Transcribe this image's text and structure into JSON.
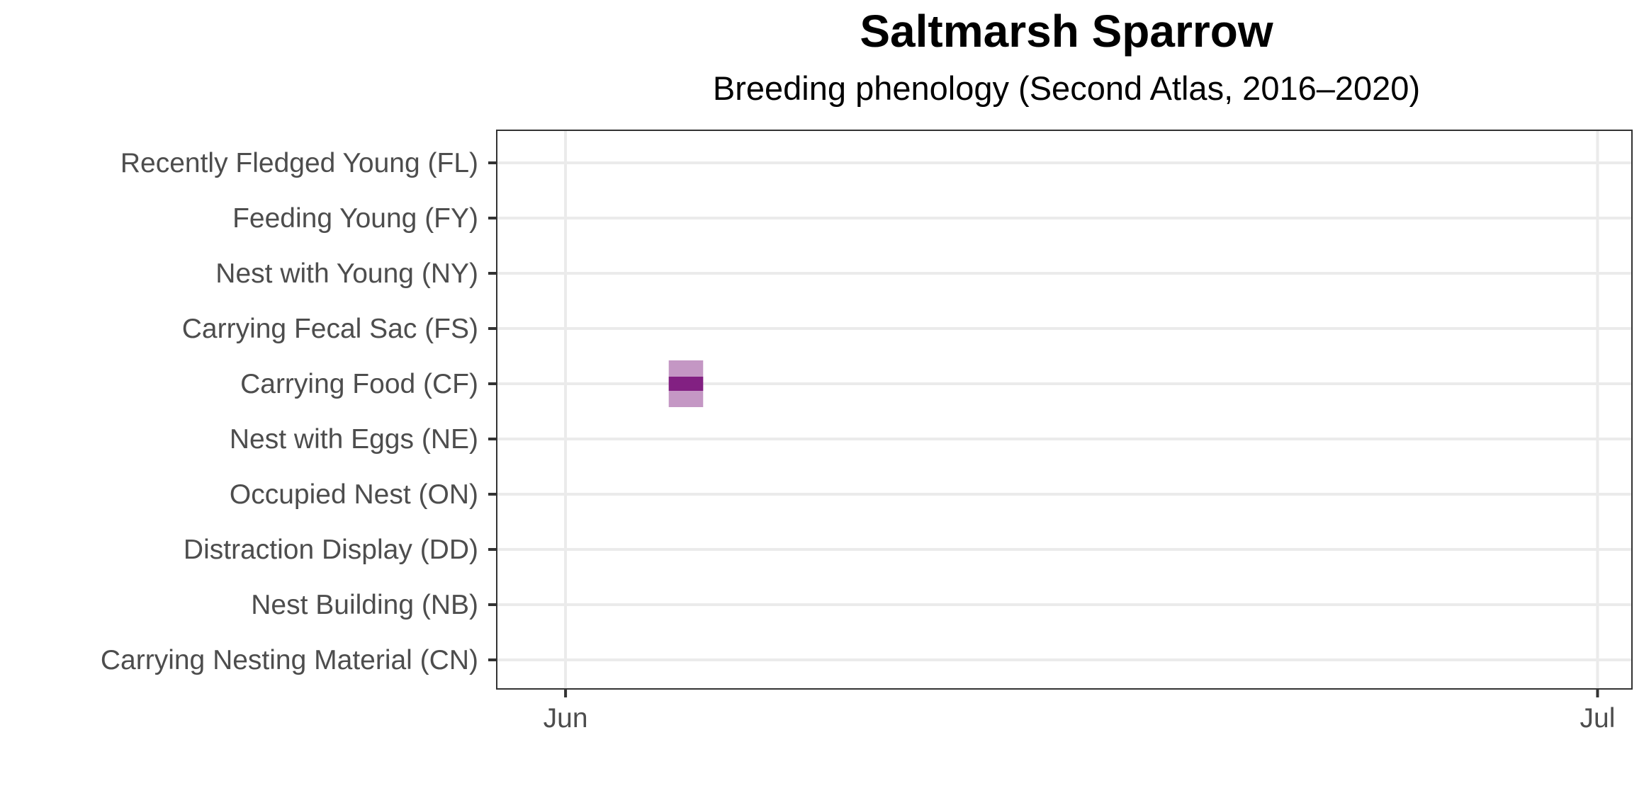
{
  "chart_data": {
    "type": "range",
    "title": "Saltmarsh Sparrow",
    "subtitle": "Breeding phenology (Second Atlas, 2016–2020)",
    "categories": [
      "Recently Fledged Young (FL)",
      "Feeding Young (FY)",
      "Nest with Young (NY)",
      "Carrying Fecal Sac (FS)",
      "Carrying Food (CF)",
      "Nest with Eggs (NE)",
      "Occupied Nest (ON)",
      "Distraction Display (DD)",
      "Nest Building (NB)",
      "Carrying Nesting Material (CN)"
    ],
    "x_ticks": [
      {
        "label": "Jun",
        "date": "06-01"
      },
      {
        "label": "Jul",
        "date": "07-01"
      }
    ],
    "xlim": [
      "05-30",
      "07-02"
    ],
    "series": [
      {
        "category": "Carrying Food (CF)",
        "start": "06-04",
        "end": "06-05",
        "color_outer": "#c497c4",
        "color_inner": "#822082"
      }
    ],
    "grid": true,
    "legend": "none"
  }
}
